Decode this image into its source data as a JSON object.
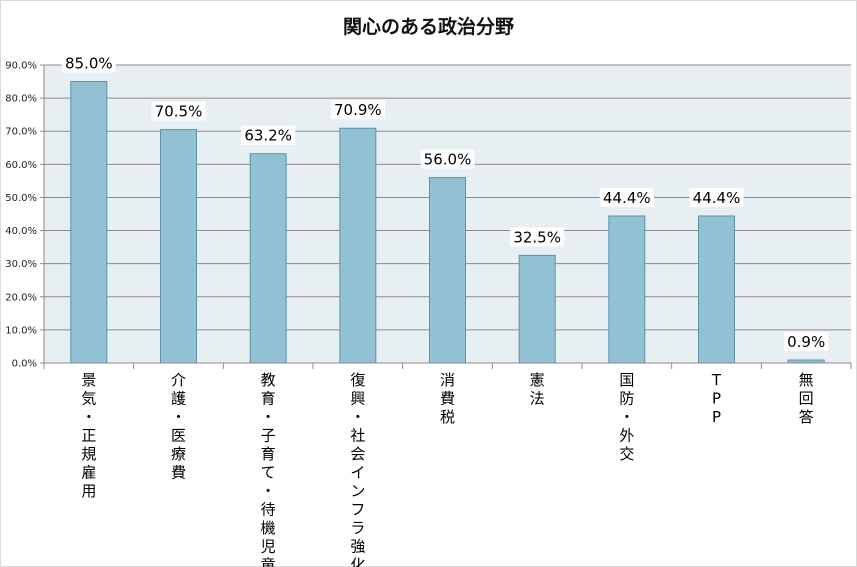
{
  "chart_data": {
    "type": "bar",
    "title": "関心のある政治分野",
    "categories": [
      "景気・正規雇用",
      "介護・医療費",
      "教育・子育て・待機児童",
      "復興・社会インフラ強化",
      "消費税",
      "憲法",
      "国防・外交",
      "TPP",
      "無回答"
    ],
    "values": [
      85.0,
      70.5,
      63.2,
      70.9,
      56.0,
      32.5,
      44.4,
      44.4,
      0.9
    ],
    "data_labels": [
      "85.0%",
      "70.5%",
      "63.2%",
      "70.9%",
      "56.0%",
      "32.5%",
      "44.4%",
      "44.4%",
      "0.9%"
    ],
    "y_ticks": [
      "0.0%",
      "10.0%",
      "20.0%",
      "30.0%",
      "40.0%",
      "50.0%",
      "60.0%",
      "70.0%",
      "80.0%",
      "90.0%"
    ],
    "ylim": [
      0,
      90
    ],
    "grid": true,
    "xlabel": "",
    "ylabel": "",
    "colors": {
      "bar_fill": "#92c1d4",
      "bar_stroke": "#5a93ab",
      "plot_bg": "#e8eff3",
      "grid": "#8b8b8b"
    }
  }
}
